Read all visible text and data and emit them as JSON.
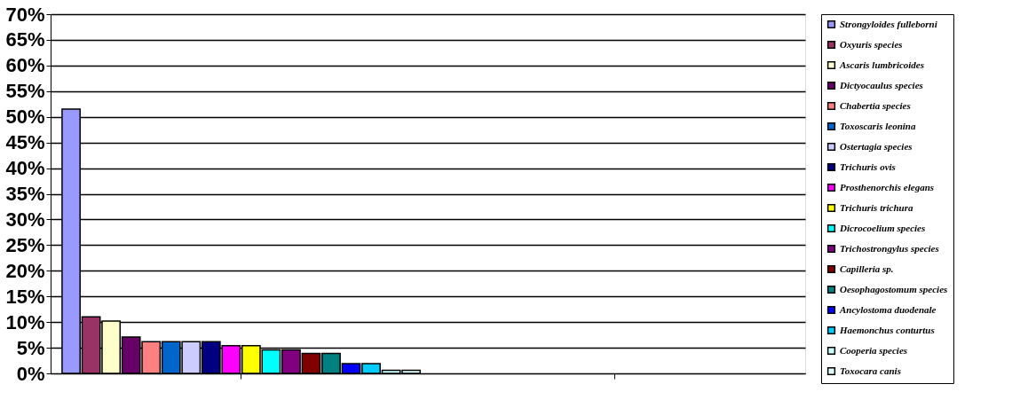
{
  "chart_data": {
    "type": "bar",
    "categories": [
      null,
      null
    ],
    "series": [
      {
        "name": "Strongyloides fulleborni",
        "color": "#9999ff",
        "values": [
          51.5,
          null
        ]
      },
      {
        "name": "Oxyuris species",
        "color": "#993366",
        "values": [
          11,
          null
        ]
      },
      {
        "name": "Ascaris lumbricoides",
        "color": "#ffffcc",
        "values": [
          10.2,
          null
        ]
      },
      {
        "name": "Dictyocaulus species",
        "color": "#660066",
        "values": [
          7.1,
          null
        ]
      },
      {
        "name": "Chabertia species",
        "color": "#ff8080",
        "values": [
          6.2,
          null
        ]
      },
      {
        "name": "Toxoscaris leonina",
        "color": "#0066cc",
        "values": [
          6.2,
          null
        ]
      },
      {
        "name": "Ostertagia species",
        "color": "#ccccff",
        "values": [
          6.2,
          null
        ]
      },
      {
        "name": "Trichuris ovis",
        "color": "#000080",
        "values": [
          6.2,
          null
        ]
      },
      {
        "name": "Prosthenorchis elegans",
        "color": "#ff00ff",
        "values": [
          5.4,
          null
        ]
      },
      {
        "name": "Trichuris trichura",
        "color": "#ffff00",
        "values": [
          5.4,
          null
        ]
      },
      {
        "name": "Dicrocoelium species",
        "color": "#00ffff",
        "values": [
          4.6,
          null
        ]
      },
      {
        "name": "Trichostrongylus species",
        "color": "#800080",
        "values": [
          4.6,
          null
        ]
      },
      {
        "name": "Capilleria sp.",
        "color": "#800000",
        "values": [
          3.9,
          null
        ]
      },
      {
        "name": "Oesophagostomum species",
        "color": "#008080",
        "values": [
          3.9,
          null
        ]
      },
      {
        "name": "Ancylostoma duodenale",
        "color": "#0000ff",
        "values": [
          1.9,
          null
        ]
      },
      {
        "name": "Haemonchus conturtus",
        "color": "#00ccff",
        "values": [
          1.9,
          null
        ]
      },
      {
        "name": "Cooperia species",
        "color": "#ccffff",
        "values": [
          0.6,
          null
        ]
      },
      {
        "name": "Toxocara canis",
        "color": "#e0ffff",
        "values": [
          0.6,
          null
        ]
      }
    ],
    "ylim": [
      0,
      70
    ],
    "yticks": [
      {
        "value": 0,
        "label": "0%"
      },
      {
        "value": 5,
        "label": "5%"
      },
      {
        "value": 10,
        "label": "10%"
      },
      {
        "value": 15,
        "label": "15%"
      },
      {
        "value": 20,
        "label": "20%"
      },
      {
        "value": 25,
        "label": "25%"
      },
      {
        "value": 30,
        "label": "30%"
      },
      {
        "value": 35,
        "label": "35%"
      },
      {
        "value": 40,
        "label": "40%"
      },
      {
        "value": 45,
        "label": "45%"
      },
      {
        "value": 50,
        "label": "50%"
      },
      {
        "value": 55,
        "label": "55%"
      },
      {
        "value": 60,
        "label": "60%"
      },
      {
        "value": 65,
        "label": "65%"
      },
      {
        "value": 70,
        "label": "70%"
      }
    ],
    "grid": "y",
    "legend": "right"
  }
}
